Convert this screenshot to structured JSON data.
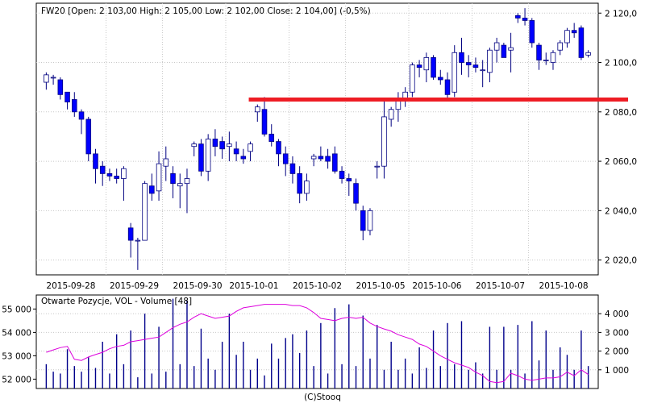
{
  "chart_data": [
    {
      "type": "candlestick",
      "title": "FW20 [Open: 2 103,00  High: 2 105,00  Low: 2 102,00  Close: 2 104,00] (-0,5%)",
      "ylim": [
        2014,
        2124
      ],
      "y_ticks": [
        "2 020,0",
        "2 040,0",
        "2 060,0",
        "2 080,0",
        "2 100,0",
        "2 120,0"
      ],
      "y_tick_values": [
        2020,
        2040,
        2060,
        2080,
        2100,
        2120
      ],
      "x_ticks": [
        "2015-09-28",
        "2015-09-29",
        "2015-09-30",
        "2015-10-01",
        "2015-10-02",
        "2015-10-05",
        "2015-10-06",
        "2015-10-07",
        "2015-10-08"
      ],
      "grid": true,
      "colors": {
        "up": "#ffffff",
        "down": "#0000ff",
        "border": "#000080",
        "resistance": "#ee1c24"
      },
      "resistance_level": 2085,
      "candles": [
        [
          2092,
          2096,
          2089,
          2095
        ],
        [
          2094,
          2095,
          2091,
          2094
        ],
        [
          2093,
          2094,
          2085,
          2087
        ],
        [
          2088,
          2088,
          2081,
          2084
        ],
        [
          2085,
          2088,
          2078,
          2080
        ],
        [
          2080,
          2081,
          2071,
          2077
        ],
        [
          2077,
          2078,
          2060,
          2063
        ],
        [
          2063,
          2065,
          2051,
          2057
        ],
        [
          2058,
          2060,
          2050,
          2055
        ],
        [
          2055,
          2057,
          2052,
          2054
        ],
        [
          2054,
          2057,
          2051,
          2053
        ],
        [
          2053,
          2058,
          2044,
          2057
        ],
        [
          2033,
          2035,
          2021,
          2028
        ],
        [
          2028,
          2029,
          2016,
          2028
        ],
        [
          2028,
          2052,
          2028,
          2051
        ],
        [
          2050,
          2055,
          2044,
          2047
        ],
        [
          2048,
          2064,
          2044,
          2059
        ],
        [
          2058,
          2066,
          2052,
          2061
        ],
        [
          2055,
          2058,
          2045,
          2051
        ],
        [
          2050,
          2055,
          2041,
          2051
        ],
        [
          2051,
          2057,
          2039,
          2053
        ],
        [
          2066,
          2068,
          2062,
          2067
        ],
        [
          2067,
          2069,
          2054,
          2056
        ],
        [
          2056,
          2071,
          2052,
          2069
        ],
        [
          2069,
          2073,
          2062,
          2066
        ],
        [
          2068,
          2070,
          2061,
          2065
        ],
        [
          2066,
          2072,
          2060,
          2067
        ],
        [
          2065,
          2068,
          2060,
          2063
        ],
        [
          2062,
          2065,
          2059,
          2061
        ],
        [
          2064,
          2068,
          2060,
          2067
        ],
        [
          2080,
          2083,
          2076,
          2082
        ],
        [
          2081,
          2086,
          2070,
          2071
        ],
        [
          2071,
          2075,
          2066,
          2068
        ],
        [
          2068,
          2069,
          2058,
          2063
        ],
        [
          2063,
          2066,
          2054,
          2059
        ],
        [
          2059,
          2062,
          2051,
          2055
        ],
        [
          2055,
          2058,
          2043,
          2047
        ],
        [
          2047,
          2055,
          2044,
          2052
        ],
        [
          2061,
          2063,
          2058,
          2062
        ],
        [
          2062,
          2066,
          2060,
          2061
        ],
        [
          2062,
          2065,
          2057,
          2060
        ],
        [
          2063,
          2066,
          2055,
          2056
        ],
        [
          2056,
          2058,
          2051,
          2053
        ],
        [
          2053,
          2055,
          2046,
          2052
        ],
        [
          2051,
          2053,
          2040,
          2043
        ],
        [
          2040,
          2042,
          2028,
          2032
        ],
        [
          2032,
          2041,
          2030,
          2040
        ],
        [
          2058,
          2060,
          2053,
          2058
        ],
        [
          2058,
          2085,
          2053,
          2078
        ],
        [
          2077,
          2082,
          2074,
          2081
        ],
        [
          2081,
          2088,
          2076,
          2085
        ],
        [
          2085,
          2090,
          2082,
          2088
        ],
        [
          2088,
          2100,
          2086,
          2099
        ],
        [
          2099,
          2101,
          2094,
          2098
        ],
        [
          2097,
          2104,
          2092,
          2102
        ],
        [
          2102,
          2103,
          2093,
          2094
        ],
        [
          2094,
          2097,
          2091,
          2093
        ],
        [
          2093,
          2096,
          2085,
          2087
        ],
        [
          2088,
          2107,
          2086,
          2104
        ],
        [
          2104,
          2110,
          2095,
          2100
        ],
        [
          2100,
          2103,
          2094,
          2099
        ],
        [
          2099,
          2102,
          2096,
          2098
        ],
        [
          2097,
          2101,
          2090,
          2097
        ],
        [
          2096,
          2106,
          2092,
          2105
        ],
        [
          2105,
          2110,
          2100,
          2108
        ],
        [
          2107,
          2108,
          2102,
          2102
        ],
        [
          2105,
          2112,
          2096,
          2106
        ],
        [
          2119,
          2120,
          2116,
          2118
        ],
        [
          2118,
          2122,
          2115,
          2117
        ],
        [
          2117,
          2118,
          2106,
          2108
        ],
        [
          2107,
          2108,
          2097,
          2101
        ],
        [
          2101,
          2104,
          2099,
          2101
        ],
        [
          2100,
          2105,
          2097,
          2104
        ],
        [
          2105,
          2109,
          2103,
          2108
        ],
        [
          2108,
          2114,
          2106,
          2113
        ],
        [
          2113,
          2116,
          2110,
          2112
        ],
        [
          2114,
          2115,
          2101,
          2102
        ],
        [
          2103,
          2105,
          2102,
          2104
        ]
      ]
    },
    {
      "type": "bar+line",
      "title": "Otwarte Pozycje, VOL - Volume [48]",
      "left_ticks": [
        "52 000",
        "53 000",
        "54 000",
        "55 000"
      ],
      "left_tick_values": [
        52000,
        53000,
        54000,
        55000
      ],
      "left_ylim": [
        51600,
        55600
      ],
      "right_ticks": [
        "1 000",
        "2 000",
        "3 000",
        "4 000"
      ],
      "right_tick_values": [
        1000,
        2000,
        3000,
        4000
      ],
      "right_ylim": [
        0,
        5000
      ],
      "colors": {
        "volume": "#00008b",
        "open_interest": "#dd00dd"
      },
      "volume": [
        1300,
        900,
        800,
        2100,
        1200,
        900,
        1700,
        1100,
        2500,
        800,
        2900,
        1300,
        3100,
        600,
        4000,
        800,
        3300,
        900,
        4800,
        1300,
        4700,
        1200,
        3200,
        1600,
        1000,
        2500,
        4000,
        1800,
        2500,
        1000,
        1600,
        700,
        2400,
        1600,
        2700,
        2900,
        1900,
        3100,
        1200,
        3500,
        800,
        4300,
        1300,
        4500,
        1200,
        3900,
        1600,
        3400,
        1000,
        2500,
        1000,
        1600,
        800,
        2200,
        1100,
        3100,
        1200,
        3500,
        1300,
        3600,
        1000,
        1400,
        800,
        3300,
        1000,
        3300,
        1000,
        3400,
        800,
        3600,
        1500,
        3100,
        1000,
        2200,
        1800,
        1000,
        3100,
        1200
      ],
      "open_interest": [
        53150,
        53250,
        53350,
        53400,
        52850,
        52800,
        52950,
        53050,
        53150,
        53300,
        53400,
        53450,
        53600,
        53650,
        53700,
        53750,
        53800,
        54000,
        54200,
        54350,
        54450,
        54650,
        54800,
        54700,
        54600,
        54650,
        54700,
        54900,
        55050,
        55100,
        55150,
        55200,
        55200,
        55200,
        55200,
        55150,
        55150,
        55050,
        54850,
        54600,
        54550,
        54500,
        54600,
        54650,
        54600,
        54650,
        54400,
        54250,
        54150,
        54050,
        53900,
        53800,
        53700,
        53500,
        53400,
        53200,
        53000,
        52850,
        52700,
        52600,
        52500,
        52300,
        52150,
        51900,
        51850,
        51900,
        52250,
        52150,
        52000,
        51950,
        52000,
        52050,
        52050,
        52100,
        52300,
        52150,
        52400,
        52200
      ]
    }
  ],
  "footer": "(C)Stooq"
}
